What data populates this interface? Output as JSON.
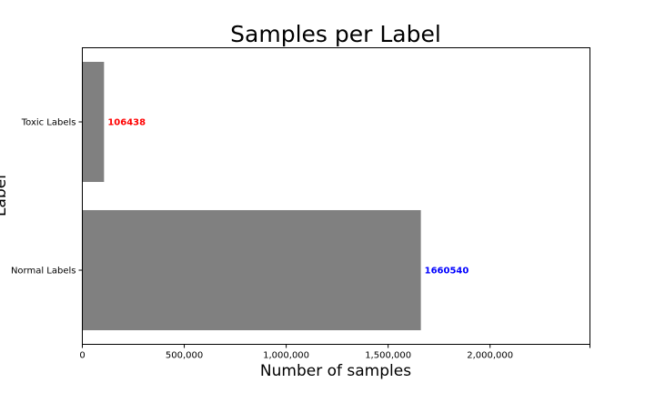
{
  "chart_data": {
    "type": "bar",
    "orientation": "horizontal",
    "title": "Samples per Label",
    "xlabel": "Number of samples",
    "ylabel": "Label",
    "categories": [
      "Normal Labels",
      "Toxic Labels"
    ],
    "values": [
      1660540,
      106438
    ],
    "data_labels": [
      "1660540",
      "106438"
    ],
    "data_label_colors": [
      "#0000ff",
      "#ff0000"
    ],
    "bar_color": "#808080",
    "xlim": [
      0,
      2490000
    ],
    "xticks": [
      0,
      500000,
      1000000,
      1500000,
      2000000
    ],
    "xtick_labels": [
      "0",
      "500,000",
      "1,000,000",
      "1,500,000",
      "2,000,000"
    ],
    "grid": false,
    "legend": "none"
  }
}
